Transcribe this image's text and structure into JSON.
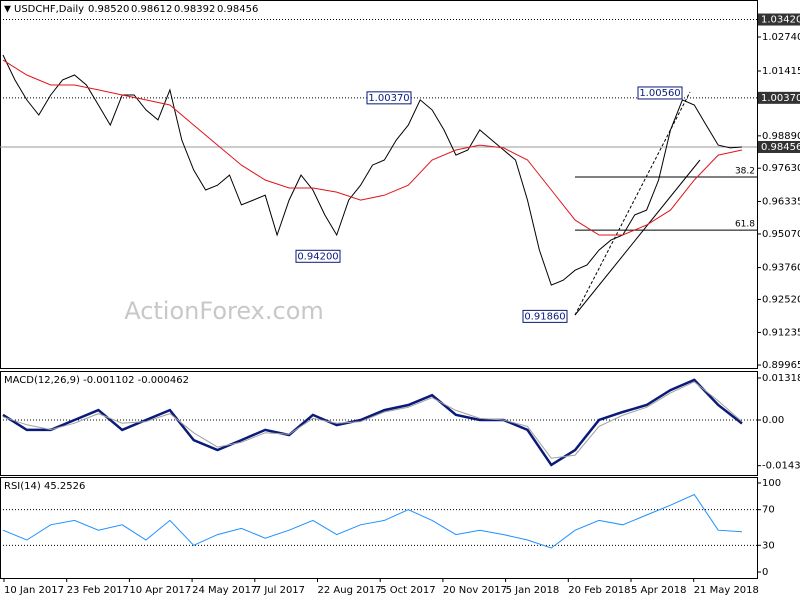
{
  "header": {
    "symbol": "USDCHF,Daily",
    "ohlc": [
      "0.98520",
      "0.98612",
      "0.98392",
      "0.98456"
    ]
  },
  "watermark": "ActionForex.com",
  "x_labels": [
    "10 Jan 2017",
    "23 Feb 2017",
    "10 Apr 2017",
    "24 May 2017",
    "7 Jul 2017",
    "22 Aug 2017",
    "5 Oct 2017",
    "20 Nov 2017",
    "5 Jan 2018",
    "20 Feb 2018",
    "5 Apr 2018",
    "21 May 2018"
  ],
  "chart_data": [
    {
      "type": "line",
      "ylim": [
        0.8985,
        1.0418
      ],
      "yticks": [
        {
          "value": 1.0274,
          "label": "1.02740"
        },
        1.01415,
        {
          "value": 0.9889,
          "label": "0.98890"
        },
        {
          "value": 0.9763,
          "label": "0.97630"
        },
        0.96335,
        {
          "value": 0.9507,
          "label": "0.95070"
        },
        {
          "value": 0.9376,
          "label": "0.93760"
        },
        {
          "value": 0.9252,
          "label": "0.92520"
        },
        0.91235,
        0.89965
      ],
      "series": [
        {
          "name": "USDCHF",
          "color": "#000000",
          "values": [
            1.0204,
            1.0107,
            1.0029,
            0.997,
            1.0048,
            1.0107,
            1.0126,
            1.0087,
            1.0009,
            0.9931,
            1.0048,
            1.0048,
            0.999,
            0.9951,
            1.0068,
            0.9873,
            0.9756,
            0.9678,
            0.9697,
            0.9736,
            0.962,
            0.9639,
            0.9658,
            0.9503,
            0.9639,
            0.9736,
            0.9678,
            0.9581,
            0.9503,
            0.9639,
            0.9697,
            0.9775,
            0.9795,
            0.9873,
            0.9931,
            1.0029,
            0.999,
            0.9912,
            0.9814,
            0.9834,
            0.9912,
            0.9873,
            0.9834,
            0.9795,
            0.9639,
            0.9444,
            0.9308,
            0.9327,
            0.9366,
            0.9386,
            0.9444,
            0.9483,
            0.9503,
            0.9581,
            0.96,
            0.9717,
            0.9912,
            1.0029,
            1.0009,
            0.9931,
            0.9853,
            0.9842,
            0.98456
          ]
        },
        {
          "name": "MA",
          "color": "#e0161b",
          "values": [
            1.0184,
            1.0126,
            1.0087,
            1.0087,
            1.0068,
            1.0048,
            1.0029,
            1.0009,
            0.9931,
            0.9853,
            0.9775,
            0.9717,
            0.9686,
            0.9686,
            0.967,
            0.9639,
            0.9658,
            0.9697,
            0.9795,
            0.9834,
            0.9853,
            0.9842,
            0.9795,
            0.9678,
            0.9561,
            0.9503,
            0.9503,
            0.9542,
            0.96,
            0.9717,
            0.9814,
            0.9834
          ]
        }
      ],
      "price_levels": [
        {
          "label": "1.03420",
          "value": 1.0342,
          "style": "dotted"
        },
        {
          "label": "1.00370",
          "value": 1.0037,
          "style": "dotted"
        },
        {
          "label": "0.98456",
          "value": 0.98456,
          "style": "solid"
        }
      ],
      "fib_levels": [
        {
          "label": "38.2",
          "value": 0.9729
        },
        {
          "label": "61.8",
          "value": 0.9522
        }
      ],
      "annotations": [
        {
          "text": "1.00370",
          "value": 1.0037
        },
        {
          "text": "0.94200",
          "value": 0.942
        },
        {
          "text": "0.91860",
          "value": 0.9186
        },
        {
          "text": "1.00560",
          "value": 1.0056
        }
      ]
    },
    {
      "type": "line",
      "title": "MACD(12,26,9) -0.001102 -0.000462",
      "ylim": [
        -0.01726,
        0.01538
      ],
      "yticks": [
        0.013184,
        {
          "value": 0,
          "label": "0.00"
        },
        -0.014339
      ],
      "dotted_levels": [
        0
      ],
      "series": [
        {
          "name": "MACD",
          "color": "#0a1a7a",
          "values": [
            0.0016,
            -0.0031,
            -0.0031,
            0,
            0.0031,
            -0.0031,
            0,
            0.0031,
            -0.0063,
            -0.0094,
            -0.0063,
            -0.0031,
            -0.0047,
            0.0016,
            -0.0016,
            0,
            0.0031,
            0.0047,
            0.0078,
            0.0016,
            0,
            0,
            -0.0031,
            -0.0141,
            -0.0094,
            0,
            0.0025,
            0.0047,
            0.0094,
            0.0126,
            0.0047,
            -0.0011
          ]
        },
        {
          "name": "Signal",
          "color": "#a0a0a0",
          "values": [
            0.001,
            -0.0015,
            -0.003,
            -0.001,
            0.002,
            -0.001,
            -0.0005,
            0.002,
            -0.004,
            -0.0085,
            -0.007,
            -0.004,
            -0.0045,
            0.0005,
            -0.001,
            -0.0005,
            0.0025,
            0.004,
            0.007,
            0.003,
            0.0005,
            0,
            -0.002,
            -0.012,
            -0.011,
            -0.002,
            0.0015,
            0.004,
            0.0085,
            0.012,
            0.006,
            -0.0005
          ]
        }
      ]
    },
    {
      "type": "line",
      "title": "RSI(14) 45.2526",
      "ylim": [
        -6.7,
        106.7
      ],
      "yticks": [
        100,
        70,
        30,
        0
      ],
      "dotted_levels": [
        70,
        30
      ],
      "series": [
        {
          "name": "RSI",
          "color": "#1e90ff",
          "values": [
            47,
            36,
            53,
            58,
            47,
            53,
            36,
            58,
            30,
            42,
            49,
            38,
            47,
            58,
            42,
            53,
            58,
            70,
            58,
            42,
            47,
            42,
            36,
            27,
            47,
            58,
            53,
            64,
            75,
            87,
            47,
            45.2526
          ]
        }
      ]
    }
  ]
}
